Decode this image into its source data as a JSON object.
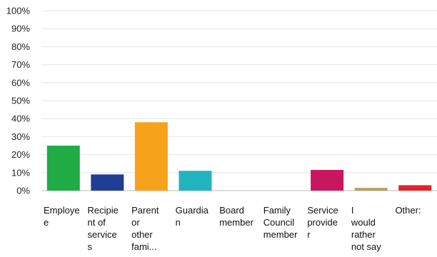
{
  "chart_data": {
    "type": "bar",
    "categories": [
      "Employee",
      "Recipient of services",
      "Parent or other fami...",
      "Guardian",
      "Board member",
      "Family Council member",
      "Service provider",
      "I would rather not say",
      "Other:"
    ],
    "category_label_lines": [
      [
        "Employe",
        "e"
      ],
      [
        "Recipie",
        "nt of",
        "service",
        "s"
      ],
      [
        "Parent",
        "or",
        "other",
        "fami..."
      ],
      [
        "Guardia",
        "n"
      ],
      [
        "Board",
        "member"
      ],
      [
        "Family",
        "Council",
        "member"
      ],
      [
        "Service",
        "provide",
        "r"
      ],
      [
        "I",
        "would",
        "rather",
        "not say"
      ],
      [
        "Other:"
      ]
    ],
    "values": [
      25,
      9,
      38,
      11,
      0,
      0,
      11.5,
      1.5,
      3
    ],
    "bar_colors": [
      "#22ac45",
      "#1f3f95",
      "#f7a21b",
      "#23b3be",
      "#999999",
      "#999999",
      "#c8175f",
      "#b69e5c",
      "#e0242a"
    ],
    "y_ticks": [
      "0%",
      "10%",
      "20%",
      "30%",
      "40%",
      "50%",
      "60%",
      "70%",
      "80%",
      "90%",
      "100%"
    ],
    "ylim": [
      0,
      100
    ],
    "grid": true,
    "title": "",
    "xlabel": "",
    "ylabel": ""
  }
}
